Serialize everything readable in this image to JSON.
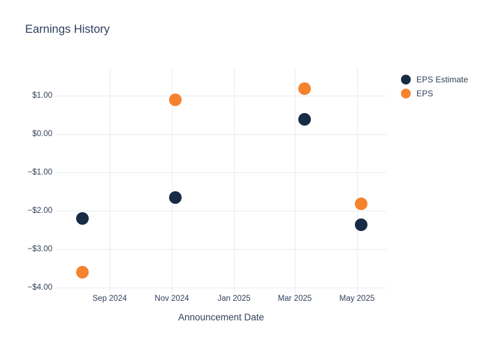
{
  "colors": {
    "background": "#ffffff",
    "gridline": "#e8ecf4",
    "title_text": "#2e3f5e",
    "axis_text": "#33415c",
    "eps_estimate": "#172a46",
    "eps": "#f5822d"
  },
  "chart_data": {
    "type": "scatter",
    "title": "Earnings History",
    "xlabel": "Announcement Date",
    "ylabel": "",
    "grid": true,
    "legend_position": "right",
    "x_tick_labels": [
      "Sep 2024",
      "Nov 2024",
      "Jan 2025",
      "Mar 2025",
      "May 2025"
    ],
    "x_tick_dates": [
      "2024-09-01",
      "2024-11-01",
      "2025-01-01",
      "2025-03-01",
      "2025-05-01"
    ],
    "x_domain": [
      "2024-07-10",
      "2025-05-30"
    ],
    "y_tick_labels": [
      "$1.00",
      "$0.00",
      "−$1.00",
      "−$2.00",
      "−$3.00",
      "−$4.00"
    ],
    "y_tick_values": [
      1,
      0,
      -1,
      -2,
      -3,
      -4
    ],
    "y_domain": [
      -4.15,
      1.7
    ],
    "x_dates": [
      "2024-08-05",
      "2024-11-04",
      "2025-03-11",
      "2025-05-05"
    ],
    "series": [
      {
        "name": "EPS Estimate",
        "color": "#172a46",
        "values": [
          -2.21,
          -1.66,
          0.38,
          -2.37
        ]
      },
      {
        "name": "EPS",
        "color": "#f5822d",
        "values": [
          -3.61,
          0.89,
          1.17,
          -1.82
        ]
      }
    ]
  }
}
